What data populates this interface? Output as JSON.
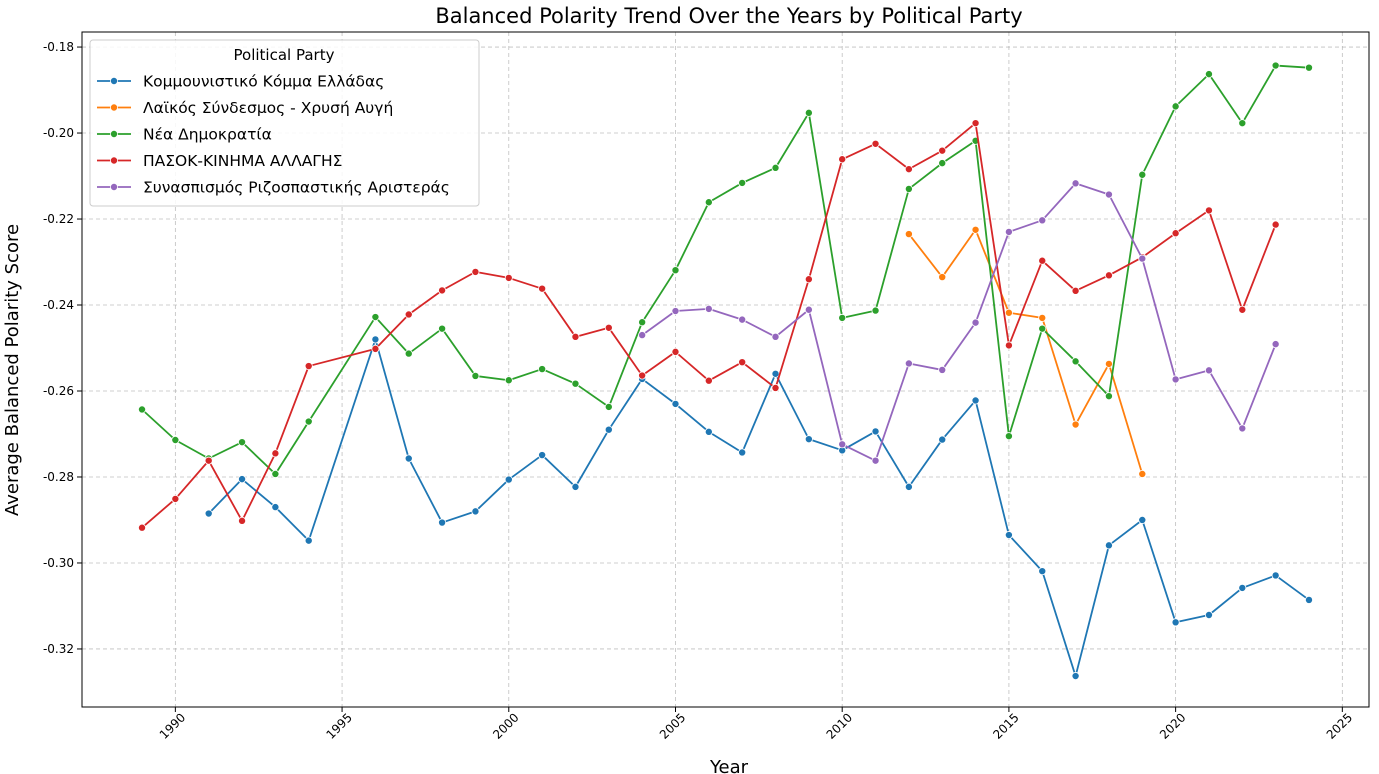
{
  "chart_data": {
    "type": "line",
    "title": "Balanced Polarity Trend Over the Years by Political Party",
    "xlabel": "Year",
    "ylabel": "Average Balanced Polarity Score",
    "xlim": [
      1987.2,
      1,
      2025.8
    ],
    "xticks": [
      1990,
      1995,
      2000,
      2005,
      2010,
      2015,
      2020,
      2025
    ],
    "ylim": [
      -0.3335,
      -0.1765
    ],
    "yticks": [
      -0.32,
      -0.3,
      -0.28,
      -0.26,
      -0.24,
      -0.22,
      -0.2,
      -0.18
    ],
    "ytick_labels": [
      "-0.32",
      "-0.30",
      "-0.28",
      "-0.26",
      "-0.24",
      "-0.22",
      "-0.20",
      "-0.18"
    ],
    "grid": true,
    "legend": {
      "title": "Political Party",
      "placement": "top-left"
    },
    "series": [
      {
        "name": "Κομμουνιστικό Κόμμα Ελλάδας",
        "color": "#1f77b4",
        "points": [
          [
            1991,
            -0.2885
          ],
          [
            1992,
            -0.2805
          ],
          [
            1993,
            -0.287
          ],
          [
            1994,
            -0.2948
          ],
          [
            1996,
            -0.248
          ],
          [
            1997,
            -0.2757
          ],
          [
            1998,
            -0.2906
          ],
          [
            1999,
            -0.288
          ],
          [
            2000,
            -0.2806
          ],
          [
            2001,
            -0.2749
          ],
          [
            2002,
            -0.2823
          ],
          [
            2003,
            -0.269
          ],
          [
            2004,
            -0.2572
          ],
          [
            2005,
            -0.263
          ],
          [
            2006,
            -0.2695
          ],
          [
            2007,
            -0.2743
          ],
          [
            2008,
            -0.256
          ],
          [
            2009,
            -0.2712
          ],
          [
            2010,
            -0.2738
          ],
          [
            2011,
            -0.2694
          ],
          [
            2012,
            -0.2823
          ],
          [
            2013,
            -0.2713
          ],
          [
            2014,
            -0.2622
          ],
          [
            2015,
            -0.2935
          ],
          [
            2016,
            -0.3019
          ],
          [
            2017,
            -0.3263
          ],
          [
            2018,
            -0.2959
          ],
          [
            2019,
            -0.29
          ],
          [
            2020,
            -0.3138
          ],
          [
            2021,
            -0.3121
          ],
          [
            2022,
            -0.3058
          ],
          [
            2023,
            -0.3029
          ],
          [
            2024,
            -0.3086
          ]
        ]
      },
      {
        "name": "Λαϊκός Σύνδεσμος - Χρυσή Αυγή",
        "color": "#ff7f0e",
        "points": [
          [
            2012,
            -0.2235
          ],
          [
            2013,
            -0.2335
          ],
          [
            2014,
            -0.2225
          ],
          [
            2015,
            -0.2418
          ],
          [
            2016,
            -0.243
          ],
          [
            2017,
            -0.2678
          ],
          [
            2018,
            -0.2537
          ],
          [
            2019,
            -0.2793
          ]
        ]
      },
      {
        "name": "Νέα Δημοκρατία",
        "color": "#2ca02c",
        "points": [
          [
            1989,
            -0.2643
          ],
          [
            1990,
            -0.2714
          ],
          [
            1991,
            -0.2757
          ],
          [
            1992,
            -0.2719
          ],
          [
            1993,
            -0.2793
          ],
          [
            1994,
            -0.2671
          ],
          [
            1996,
            -0.2428
          ],
          [
            1997,
            -0.2513
          ],
          [
            1998,
            -0.2455
          ],
          [
            1999,
            -0.2565
          ],
          [
            2000,
            -0.2575
          ],
          [
            2001,
            -0.2549
          ],
          [
            2002,
            -0.2583
          ],
          [
            2003,
            -0.2637
          ],
          [
            2004,
            -0.244
          ],
          [
            2005,
            -0.2319
          ],
          [
            2006,
            -0.2161
          ],
          [
            2007,
            -0.2116
          ],
          [
            2008,
            -0.2081
          ],
          [
            2009,
            -0.1953
          ],
          [
            2010,
            -0.243
          ],
          [
            2011,
            -0.2413
          ],
          [
            2012,
            -0.213
          ],
          [
            2013,
            -0.207
          ],
          [
            2014,
            -0.2018
          ],
          [
            2015,
            -0.2705
          ],
          [
            2016,
            -0.2455
          ],
          [
            2017,
            -0.2531
          ],
          [
            2018,
            -0.2612
          ],
          [
            2019,
            -0.2097
          ],
          [
            2020,
            -0.1938
          ],
          [
            2021,
            -0.1863
          ],
          [
            2022,
            -0.1977
          ],
          [
            2023,
            -0.1843
          ],
          [
            2024,
            -0.1848
          ]
        ]
      },
      {
        "name": "ΠΑΣΟΚ-ΚΙΝΗΜΑ ΑΛΛΑΓΗΣ",
        "color": "#d62728",
        "points": [
          [
            1989,
            -0.2918
          ],
          [
            1990,
            -0.2851
          ],
          [
            1991,
            -0.2762
          ],
          [
            1992,
            -0.2902
          ],
          [
            1993,
            -0.2745
          ],
          [
            1994,
            -0.2542
          ],
          [
            1996,
            -0.2502
          ],
          [
            1997,
            -0.2422
          ],
          [
            1998,
            -0.2366
          ],
          [
            1999,
            -0.2323
          ],
          [
            2000,
            -0.2337
          ],
          [
            2001,
            -0.2362
          ],
          [
            2002,
            -0.2474
          ],
          [
            2003,
            -0.2453
          ],
          [
            2004,
            -0.2564
          ],
          [
            2005,
            -0.2509
          ],
          [
            2006,
            -0.2576
          ],
          [
            2007,
            -0.2533
          ],
          [
            2008,
            -0.2593
          ],
          [
            2009,
            -0.234
          ],
          [
            2010,
            -0.2061
          ],
          [
            2011,
            -0.2025
          ],
          [
            2012,
            -0.2084
          ],
          [
            2013,
            -0.2041
          ],
          [
            2014,
            -0.1977
          ],
          [
            2015,
            -0.2494
          ],
          [
            2016,
            -0.2297
          ],
          [
            2017,
            -0.2367
          ],
          [
            2018,
            -0.2331
          ],
          [
            2019,
            -0.2289
          ],
          [
            2020,
            -0.2233
          ],
          [
            2021,
            -0.218
          ],
          [
            2022,
            -0.2411
          ],
          [
            2023,
            -0.2213
          ]
        ]
      },
      {
        "name": "Συνασπισμός Ριζοσπαστικής Αριστεράς",
        "color": "#9467bd",
        "points": [
          [
            2004,
            -0.247
          ],
          [
            2005,
            -0.2414
          ],
          [
            2006,
            -0.2409
          ],
          [
            2007,
            -0.2434
          ],
          [
            2008,
            -0.2474
          ],
          [
            2009,
            -0.2411
          ],
          [
            2010,
            -0.2724
          ],
          [
            2011,
            -0.2762
          ],
          [
            2012,
            -0.2536
          ],
          [
            2013,
            -0.2551
          ],
          [
            2014,
            -0.2441
          ],
          [
            2015,
            -0.223
          ],
          [
            2016,
            -0.2203
          ],
          [
            2017,
            -0.2117
          ],
          [
            2018,
            -0.2143
          ],
          [
            2019,
            -0.2292
          ],
          [
            2020,
            -0.2573
          ],
          [
            2021,
            -0.2552
          ],
          [
            2022,
            -0.2687
          ],
          [
            2023,
            -0.2491
          ]
        ]
      }
    ]
  }
}
